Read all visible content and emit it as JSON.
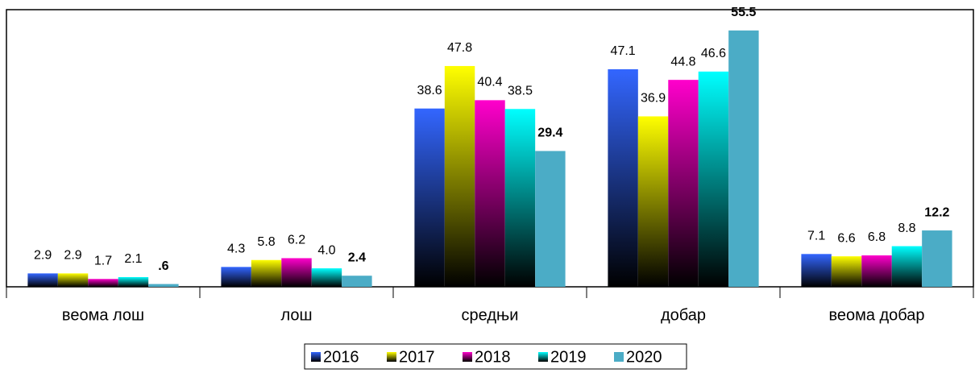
{
  "chart_data": {
    "type": "bar",
    "categories": [
      "веома лош",
      "лош",
      "средњи",
      "добар",
      "веома добар"
    ],
    "ylim": [
      0,
      60
    ],
    "series": [
      {
        "name": "2016",
        "color": "#3366ff",
        "gradient": true,
        "values": [
          2.9,
          4.3,
          38.6,
          47.1,
          7.1
        ],
        "value_labels": [
          "2.9",
          "4.3",
          "38.6",
          "47.1",
          "7.1"
        ]
      },
      {
        "name": "2017",
        "color": "#ffff00",
        "gradient": true,
        "values": [
          2.9,
          5.8,
          47.8,
          36.9,
          6.6
        ],
        "value_labels": [
          "2.9",
          "5.8",
          "47.8",
          "36.9",
          "6.6"
        ]
      },
      {
        "name": "2018",
        "color": "#ff00cc",
        "gradient": true,
        "values": [
          1.7,
          6.2,
          40.4,
          44.8,
          6.8
        ],
        "value_labels": [
          "1.7",
          "6.2",
          "40.4",
          "44.8",
          "6.8"
        ]
      },
      {
        "name": "2019",
        "color": "#00ffff",
        "gradient": true,
        "values": [
          2.1,
          4.0,
          38.5,
          46.6,
          8.8
        ],
        "value_labels": [
          "2.1",
          "4.0",
          "38.5",
          "46.6",
          "8.8"
        ]
      },
      {
        "name": "2020",
        "color": "#4bacc6",
        "gradient": false,
        "bold_labels": true,
        "values": [
          0.6,
          2.4,
          29.4,
          55.5,
          12.2
        ],
        "value_labels": [
          ".6",
          "2.4",
          "29.4",
          "55.5",
          "12.2"
        ]
      }
    ]
  }
}
